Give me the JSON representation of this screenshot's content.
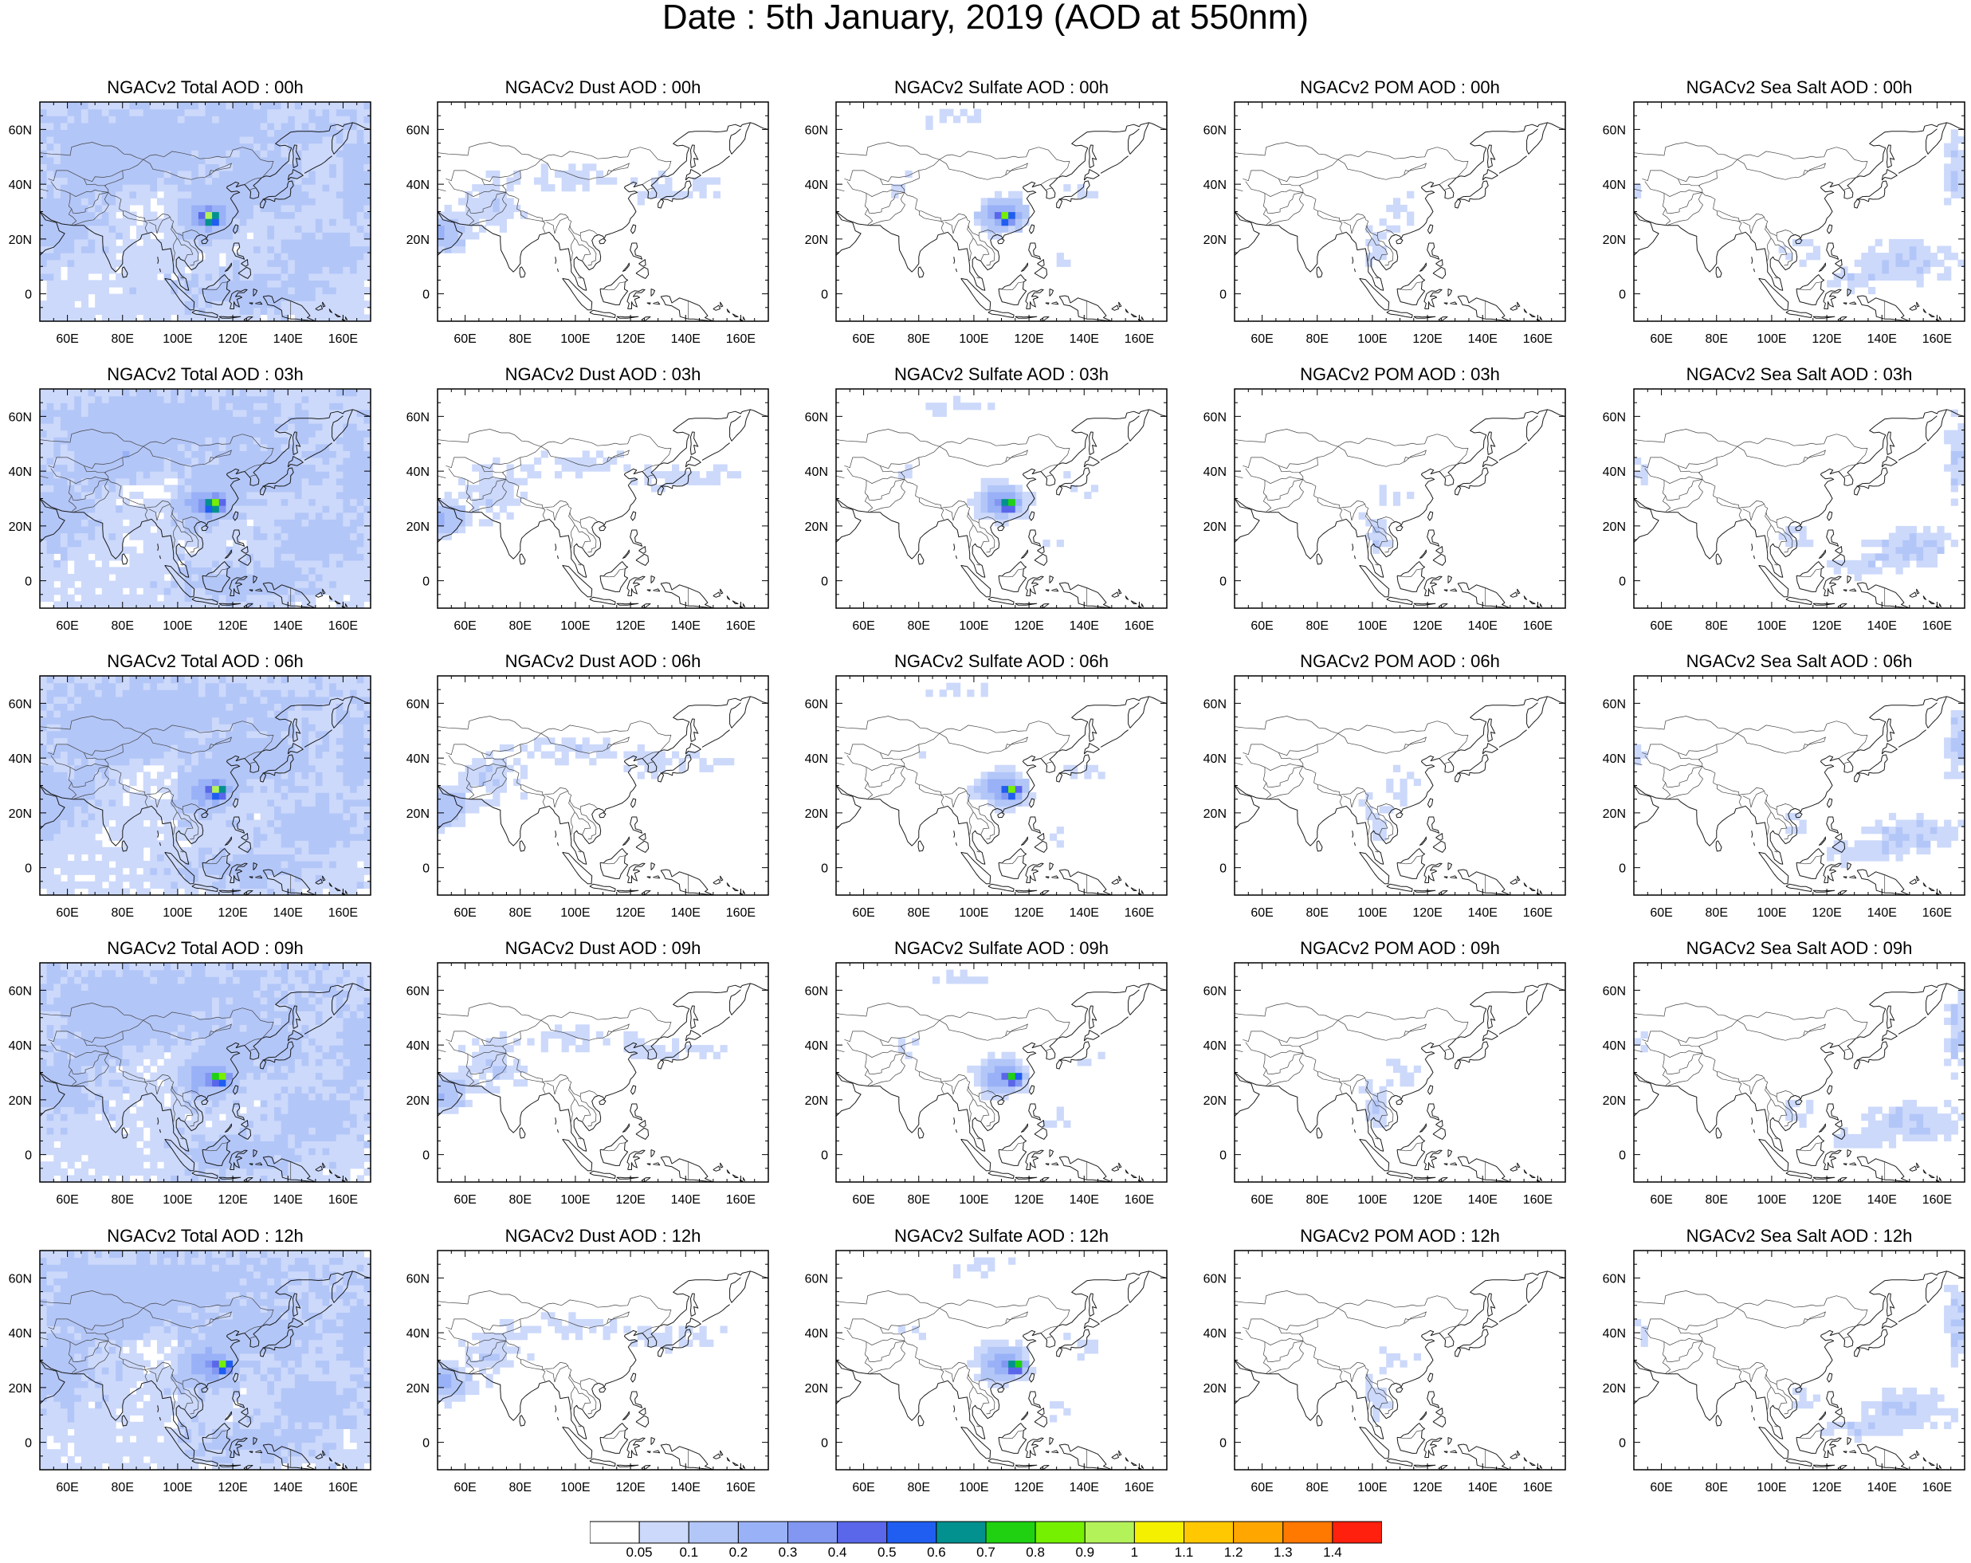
{
  "title": "Date : 5th January, 2019 (AOD at 550nm)",
  "row_labels": [
    [
      "NGACv2 Total AOD : 00h",
      "NGACv2 Dust AOD : 00h",
      "NGACv2 Sulfate AOD : 00h",
      "NGACv2 POM AOD : 00h",
      "NGACv2 Sea Salt AOD : 00h"
    ],
    [
      "NGACv2 Total AOD : 03h",
      "NGACv2 Dust AOD : 03h",
      "NGACv2 Sulfate AOD : 03h",
      "NGACv2 POM AOD : 03h",
      "NGACv2 Sea Salt AOD : 03h"
    ],
    [
      "NGACv2 Total AOD : 06h",
      "NGACv2 Dust AOD : 06h",
      "NGACv2 Sulfate AOD : 06h",
      "NGACv2 POM AOD : 06h",
      "NGACv2 Sea Salt AOD : 06h"
    ],
    [
      "NGACv2 Total AOD : 09h",
      "NGACv2 Dust AOD : 09h",
      "NGACv2 Sulfate AOD : 09h",
      "NGACv2 POM AOD : 09h",
      "NGACv2 Sea Salt  AOD : 09h"
    ],
    [
      "NGACv2 Total AOD  : 12h",
      "NGACv2 Dust AOD : 12h",
      "NGACv2 Sulfate AOD : 12h",
      "NGACv2 POM  AOD : 12h",
      "NGACv2 Sea Salt  AOD : 12h"
    ]
  ],
  "lat_ticks": [
    "60N",
    "40N",
    "20N",
    "0"
  ],
  "lon_ticks": [
    "60E",
    "80E",
    "100E",
    "120E",
    "140E",
    "160E"
  ],
  "map_extent": {
    "lon_min": 50,
    "lon_max": 170,
    "lat_min": -10,
    "lat_max": 70
  },
  "colorbar": {
    "colors": [
      "#ffffff",
      "#ccd9fb",
      "#b3c6f8",
      "#99b1f6",
      "#8297f2",
      "#5a67ea",
      "#1f5ef0",
      "#03918f",
      "#1fd111",
      "#75f000",
      "#b4f25a",
      "#f5f000",
      "#ffc800",
      "#ffa600",
      "#ff7800",
      "#ff200d"
    ],
    "labels": [
      "0.05",
      "0.1",
      "0.2",
      "0.3",
      "0.4",
      "0.5",
      "0.6",
      "0.7",
      "0.8",
      "0.9",
      "1",
      "1.1",
      "1.2",
      "1.3",
      "1.4"
    ]
  }
}
